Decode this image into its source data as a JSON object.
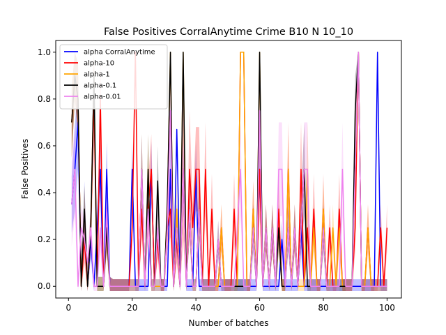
{
  "chart_data": {
    "type": "line",
    "title": "False Positives CorralAnytime Crime B10 N 10_10",
    "xlabel": "Number of batches",
    "ylabel": "False Positives",
    "xlim": [
      -4,
      104.5
    ],
    "ylim": [
      -0.05,
      1.05
    ],
    "xticks": [
      0,
      20,
      40,
      60,
      80,
      100
    ],
    "yticks": [
      0.0,
      0.2,
      0.4,
      0.6,
      0.8,
      1.0
    ],
    "xtick_labels": [
      "0",
      "20",
      "40",
      "60",
      "80",
      "100"
    ],
    "ytick_labels": [
      "0.0",
      "0.2",
      "0.4",
      "0.6",
      "0.8",
      "1.0"
    ],
    "grid": false,
    "legend_position": "upper-left",
    "band": "shaded region around each series",
    "x": [
      1,
      2,
      3,
      4,
      5,
      6,
      7,
      8,
      9,
      10,
      11,
      12,
      13,
      14,
      15,
      16,
      17,
      18,
      19,
      20,
      21,
      22,
      23,
      24,
      25,
      26,
      27,
      28,
      29,
      30,
      31,
      32,
      33,
      34,
      35,
      36,
      37,
      38,
      39,
      40,
      41,
      42,
      43,
      44,
      45,
      46,
      47,
      48,
      49,
      50,
      51,
      52,
      53,
      54,
      55,
      56,
      57,
      58,
      59,
      60,
      61,
      62,
      63,
      64,
      65,
      66,
      67,
      68,
      69,
      70,
      71,
      72,
      73,
      74,
      75,
      76,
      77,
      78,
      79,
      80,
      81,
      82,
      83,
      84,
      85,
      86,
      87,
      88,
      89,
      90,
      91,
      92,
      93,
      94,
      95,
      96,
      97,
      98,
      99,
      100
    ],
    "series": [
      {
        "name": "alpha CorralAnytime",
        "color": "#0000ff",
        "values": [
          0.35,
          0.5,
          0.7,
          0.0,
          0.33,
          0.0,
          0.2,
          0.0,
          0.25,
          0.5,
          0.0,
          0.5,
          0.0,
          0.0,
          0.0,
          0.0,
          0.0,
          0.0,
          0.0,
          0.5,
          0.0,
          0.0,
          0.0,
          0.0,
          0.0,
          0.5,
          0.0,
          0.0,
          0.0,
          0.0,
          0.0,
          0.5,
          0.0,
          0.67,
          0.0,
          0.5,
          0.0,
          0.0,
          0.0,
          0.5,
          0.0,
          0.0,
          0.0,
          0.0,
          0.0,
          0.0,
          0.0,
          0.0,
          0.0,
          0.0,
          0.0,
          0.0,
          0.0,
          0.0,
          0.0,
          0.0,
          0.0,
          0.0,
          0.0,
          0.5,
          0.0,
          0.0,
          0.0,
          0.0,
          0.0,
          0.0,
          0.2,
          0.0,
          0.0,
          0.0,
          0.0,
          0.0,
          0.25,
          0.0,
          0.0,
          0.0,
          0.0,
          0.0,
          0.0,
          0.0,
          0.0,
          0.0,
          0.0,
          0.0,
          0.0,
          0.0,
          0.0,
          0.0,
          0.0,
          0.0,
          0.0,
          0.0,
          0.0,
          0.0,
          0.0,
          0.0,
          1.0,
          0.0,
          0.0,
          0.0
        ],
        "band_halfwidth": [
          0.12,
          0.18,
          0.2,
          0.05,
          0.12,
          0.04,
          0.08,
          0.04,
          0.1,
          0.12,
          0.04,
          0.12,
          0.04,
          0.03,
          0.03,
          0.03,
          0.03,
          0.03,
          0.03,
          0.12,
          0.03,
          0.03,
          0.03,
          0.03,
          0.03,
          0.12,
          0.03,
          0.03,
          0.03,
          0.03,
          0.03,
          0.12,
          0.03,
          0.0,
          0.03,
          0.12,
          0.03,
          0.03,
          0.03,
          0.12,
          0.03,
          0.03,
          0.03,
          0.03,
          0.03,
          0.03,
          0.03,
          0.03,
          0.03,
          0.03,
          0.03,
          0.03,
          0.03,
          0.03,
          0.03,
          0.03,
          0.03,
          0.03,
          0.03,
          0.12,
          0.03,
          0.03,
          0.03,
          0.03,
          0.03,
          0.03,
          0.08,
          0.03,
          0.03,
          0.03,
          0.03,
          0.03,
          0.1,
          0.03,
          0.03,
          0.03,
          0.03,
          0.03,
          0.03,
          0.03,
          0.03,
          0.03,
          0.03,
          0.03,
          0.03,
          0.03,
          0.03,
          0.03,
          0.03,
          0.03,
          0.03,
          0.03,
          0.03,
          0.03,
          0.03,
          0.03,
          0.0,
          0.03,
          0.03,
          0.03
        ]
      },
      {
        "name": "alpha-10",
        "color": "#ff0000",
        "values": [
          0.7,
          0.9,
          0.8,
          0.0,
          0.2,
          0.0,
          0.25,
          0.8,
          0.0,
          0.8,
          0.0,
          0.25,
          0.0,
          0.0,
          0.0,
          0.0,
          0.0,
          0.0,
          0.0,
          0.25,
          1.0,
          0.0,
          0.33,
          0.0,
          0.33,
          0.5,
          0.0,
          0.2,
          0.0,
          0.0,
          0.25,
          0.33,
          0.0,
          0.2,
          0.0,
          0.5,
          0.0,
          0.5,
          0.25,
          0.5,
          0.5,
          0.0,
          0.5,
          0.0,
          0.33,
          0.0,
          0.0,
          0.25,
          0.0,
          0.0,
          0.0,
          0.33,
          0.0,
          1.0,
          1.0,
          0.0,
          0.0,
          0.33,
          0.0,
          0.5,
          0.0,
          0.25,
          0.0,
          0.25,
          0.0,
          0.33,
          0.0,
          0.0,
          0.5,
          0.0,
          0.25,
          0.0,
          0.5,
          0.0,
          0.25,
          0.0,
          0.33,
          0.0,
          0.0,
          0.33,
          0.0,
          0.25,
          0.0,
          0.0,
          0.33,
          0.0,
          0.0,
          0.0,
          0.0,
          0.25,
          1.0,
          0.0,
          0.0,
          0.25,
          0.0,
          0.0,
          0.0,
          0.25,
          0.0,
          0.25
        ],
        "band_halfwidth": [
          0.15,
          0.1,
          0.15,
          0.05,
          0.1,
          0.05,
          0.1,
          0.2,
          0.04,
          0.2,
          0.04,
          0.1,
          0.04,
          0.03,
          0.03,
          0.03,
          0.03,
          0.03,
          0.03,
          0.1,
          0.0,
          0.03,
          0.12,
          0.03,
          0.12,
          0.15,
          0.03,
          0.08,
          0.03,
          0.03,
          0.1,
          0.12,
          0.03,
          0.1,
          0.03,
          0.3,
          0.03,
          0.25,
          0.1,
          0.18,
          0.18,
          0.03,
          0.2,
          0.03,
          0.15,
          0.03,
          0.03,
          0.1,
          0.03,
          0.03,
          0.03,
          0.15,
          0.03,
          0.0,
          0.0,
          0.03,
          0.03,
          0.12,
          0.03,
          0.2,
          0.03,
          0.1,
          0.03,
          0.1,
          0.03,
          0.15,
          0.03,
          0.03,
          0.2,
          0.03,
          0.1,
          0.03,
          0.2,
          0.03,
          0.1,
          0.03,
          0.15,
          0.03,
          0.03,
          0.15,
          0.03,
          0.1,
          0.03,
          0.03,
          0.15,
          0.03,
          0.03,
          0.03,
          0.03,
          0.1,
          0.0,
          0.03,
          0.03,
          0.1,
          0.03,
          0.03,
          0.03,
          0.1,
          0.03,
          0.1
        ]
      },
      {
        "name": "alpha-1",
        "color": "#ffa500",
        "values": [
          0.7,
          0.9,
          0.8,
          0.0,
          0.33,
          0.0,
          0.25,
          0.9,
          0.0,
          0.0,
          0.0,
          0.25,
          0.0,
          0.0,
          0.0,
          0.0,
          0.0,
          0.0,
          0.0,
          0.0,
          0.0,
          0.0,
          0.5,
          0.0,
          0.5,
          0.0,
          0.0,
          0.0,
          0.0,
          0.0,
          0.33,
          1.0,
          0.0,
          0.33,
          0.0,
          1.0,
          0.0,
          0.33,
          0.0,
          0.0,
          0.33,
          0.0,
          0.0,
          0.0,
          0.0,
          0.0,
          0.0,
          0.25,
          0.0,
          0.0,
          0.0,
          0.0,
          0.0,
          1.0,
          1.0,
          0.0,
          0.0,
          0.33,
          0.0,
          1.0,
          0.0,
          0.25,
          0.0,
          0.25,
          0.0,
          0.25,
          0.0,
          0.0,
          0.5,
          0.0,
          0.25,
          0.0,
          0.0,
          0.0,
          0.5,
          0.0,
          0.25,
          0.0,
          0.0,
          0.33,
          0.0,
          0.0,
          0.25,
          0.0,
          0.25,
          0.0,
          0.0,
          0.0,
          0.0,
          0.5,
          1.0,
          0.0,
          0.0,
          0.25,
          0.0,
          0.0,
          0.0,
          0.0,
          0.0,
          0.0
        ],
        "band_halfwidth": [
          0.15,
          0.1,
          0.15,
          0.05,
          0.1,
          0.05,
          0.1,
          0.1,
          0.04,
          0.04,
          0.04,
          0.1,
          0.04,
          0.03,
          0.03,
          0.03,
          0.03,
          0.03,
          0.03,
          0.03,
          0.03,
          0.03,
          0.15,
          0.03,
          0.15,
          0.03,
          0.03,
          0.03,
          0.03,
          0.03,
          0.12,
          0.0,
          0.03,
          0.12,
          0.03,
          0.0,
          0.03,
          0.12,
          0.03,
          0.03,
          0.12,
          0.03,
          0.03,
          0.03,
          0.03,
          0.03,
          0.03,
          0.1,
          0.03,
          0.03,
          0.03,
          0.03,
          0.03,
          0.0,
          0.0,
          0.03,
          0.03,
          0.12,
          0.03,
          0.0,
          0.03,
          0.1,
          0.03,
          0.1,
          0.03,
          0.1,
          0.03,
          0.03,
          0.15,
          0.03,
          0.1,
          0.03,
          0.03,
          0.03,
          0.2,
          0.03,
          0.1,
          0.03,
          0.03,
          0.12,
          0.03,
          0.03,
          0.1,
          0.03,
          0.1,
          0.03,
          0.03,
          0.03,
          0.03,
          0.2,
          0.0,
          0.03,
          0.03,
          0.1,
          0.03,
          0.03,
          0.03,
          0.03,
          0.03,
          0.03
        ]
      },
      {
        "name": "alpha-0.1",
        "color": "#000000",
        "values": [
          0.7,
          0.9,
          0.8,
          0.0,
          0.33,
          0.0,
          0.25,
          0.9,
          0.0,
          0.0,
          0.0,
          0.25,
          0.0,
          0.0,
          0.0,
          0.0,
          0.0,
          0.0,
          0.0,
          0.0,
          0.0,
          0.0,
          0.5,
          0.0,
          0.5,
          0.0,
          0.0,
          0.45,
          0.0,
          0.0,
          0.33,
          1.0,
          0.0,
          0.25,
          0.0,
          1.0,
          0.0,
          0.33,
          0.0,
          0.0,
          0.33,
          0.0,
          0.0,
          0.0,
          0.0,
          0.0,
          0.2,
          0.0,
          0.0,
          0.0,
          0.0,
          0.0,
          0.0,
          0.0,
          0.0,
          0.0,
          0.0,
          0.25,
          0.0,
          1.0,
          0.0,
          0.25,
          0.0,
          0.25,
          0.0,
          0.25,
          0.0,
          0.0,
          0.25,
          0.0,
          0.25,
          0.0,
          0.25,
          0.5,
          0.0,
          0.0,
          0.0,
          0.0,
          0.0,
          0.25,
          0.0,
          0.0,
          0.0,
          0.0,
          0.0,
          0.0,
          0.0,
          0.0,
          0.0,
          0.75,
          1.0,
          0.0,
          0.0,
          0.0,
          0.0,
          0.0,
          0.0,
          0.0,
          0.0,
          0.0
        ],
        "band_halfwidth": [
          0.15,
          0.1,
          0.15,
          0.05,
          0.1,
          0.05,
          0.1,
          0.1,
          0.04,
          0.04,
          0.04,
          0.1,
          0.04,
          0.03,
          0.03,
          0.03,
          0.03,
          0.03,
          0.03,
          0.03,
          0.03,
          0.03,
          0.15,
          0.03,
          0.15,
          0.03,
          0.03,
          0.15,
          0.03,
          0.03,
          0.12,
          0.0,
          0.03,
          0.1,
          0.03,
          0.0,
          0.03,
          0.12,
          0.03,
          0.03,
          0.12,
          0.03,
          0.03,
          0.03,
          0.03,
          0.03,
          0.08,
          0.03,
          0.03,
          0.03,
          0.03,
          0.03,
          0.03,
          0.03,
          0.03,
          0.03,
          0.03,
          0.1,
          0.03,
          0.0,
          0.03,
          0.1,
          0.03,
          0.1,
          0.03,
          0.1,
          0.03,
          0.03,
          0.1,
          0.03,
          0.1,
          0.03,
          0.1,
          0.2,
          0.03,
          0.03,
          0.03,
          0.03,
          0.03,
          0.1,
          0.03,
          0.03,
          0.03,
          0.03,
          0.03,
          0.03,
          0.03,
          0.03,
          0.03,
          0.15,
          0.0,
          0.03,
          0.03,
          0.03,
          0.03,
          0.03,
          0.03,
          0.03,
          0.03,
          0.03
        ]
      },
      {
        "name": "alpha-0.01",
        "color": "#ee82ee",
        "values": [
          0.35,
          0.5,
          0.0,
          0.25,
          0.2,
          0.1,
          0.25,
          0.0,
          0.0,
          0.25,
          0.0,
          0.33,
          0.0,
          0.0,
          0.0,
          0.0,
          0.0,
          0.0,
          0.0,
          0.0,
          0.0,
          0.0,
          0.5,
          0.0,
          0.33,
          0.0,
          0.0,
          0.25,
          0.0,
          0.0,
          0.25,
          0.75,
          0.0,
          0.25,
          0.0,
          0.5,
          0.0,
          0.33,
          0.0,
          0.0,
          0.33,
          0.0,
          0.0,
          0.0,
          0.0,
          0.0,
          0.2,
          0.0,
          0.0,
          0.0,
          0.0,
          0.0,
          0.25,
          0.5,
          0.0,
          0.0,
          0.0,
          0.25,
          0.0,
          0.75,
          0.0,
          0.25,
          0.0,
          0.25,
          0.0,
          0.5,
          0.5,
          0.0,
          0.25,
          0.0,
          0.25,
          0.0,
          0.25,
          0.5,
          0.5,
          0.0,
          0.0,
          0.0,
          0.0,
          0.25,
          0.0,
          0.0,
          0.0,
          0.0,
          0.0,
          0.5,
          0.0,
          0.0,
          0.0,
          0.5,
          1.0,
          0.0,
          0.0,
          0.0,
          0.0,
          0.0,
          0.0,
          0.0,
          0.0,
          0.0
        ],
        "band_halfwidth": [
          0.18,
          0.2,
          0.04,
          0.1,
          0.08,
          0.05,
          0.1,
          0.04,
          0.04,
          0.1,
          0.04,
          0.12,
          0.04,
          0.03,
          0.03,
          0.03,
          0.03,
          0.03,
          0.03,
          0.03,
          0.03,
          0.03,
          0.15,
          0.03,
          0.12,
          0.03,
          0.03,
          0.1,
          0.03,
          0.03,
          0.1,
          0.2,
          0.03,
          0.1,
          0.03,
          0.15,
          0.03,
          0.12,
          0.03,
          0.03,
          0.12,
          0.03,
          0.03,
          0.03,
          0.03,
          0.03,
          0.08,
          0.03,
          0.03,
          0.03,
          0.03,
          0.03,
          0.1,
          0.2,
          0.03,
          0.03,
          0.03,
          0.1,
          0.03,
          0.2,
          0.03,
          0.1,
          0.03,
          0.1,
          0.03,
          0.2,
          0.2,
          0.03,
          0.1,
          0.03,
          0.1,
          0.03,
          0.1,
          0.2,
          0.2,
          0.03,
          0.03,
          0.03,
          0.03,
          0.1,
          0.03,
          0.03,
          0.03,
          0.03,
          0.03,
          0.2,
          0.03,
          0.03,
          0.03,
          0.2,
          0.0,
          0.03,
          0.03,
          0.03,
          0.03,
          0.03,
          0.03,
          0.03,
          0.03,
          0.03
        ]
      }
    ]
  }
}
